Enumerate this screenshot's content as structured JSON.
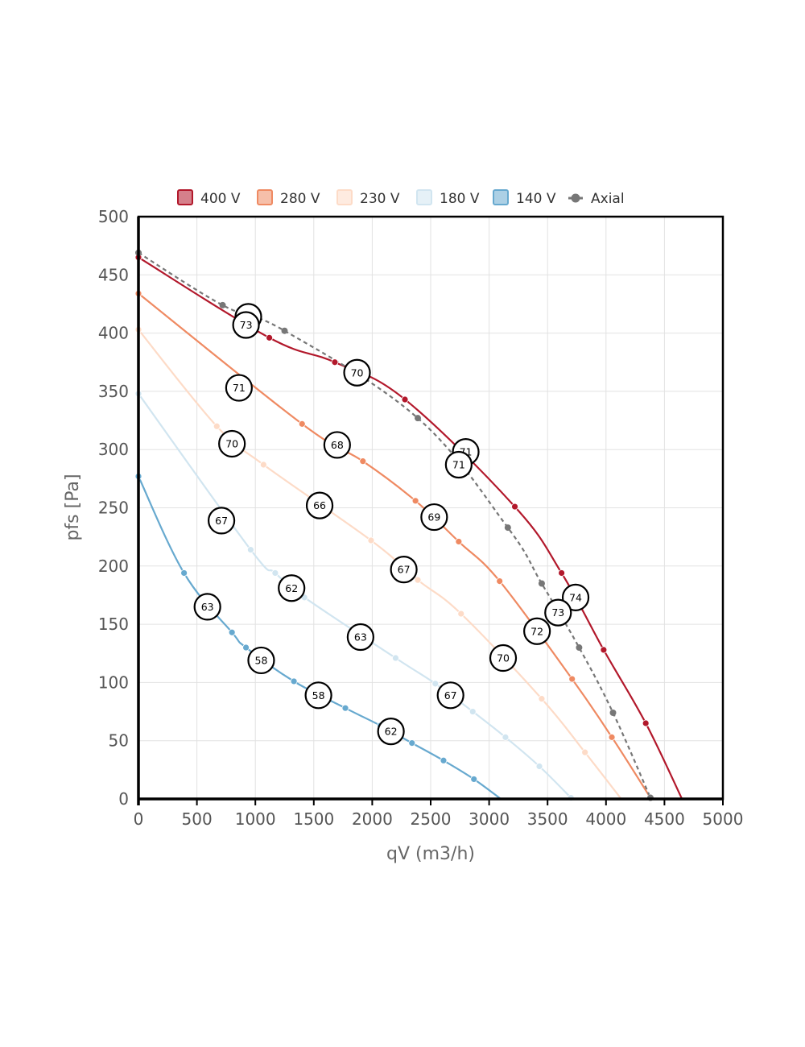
{
  "chart_data": {
    "type": "line",
    "xlabel": "qV (m3/h)",
    "ylabel": "pfs [Pa]",
    "xlim": [
      0,
      5000
    ],
    "ylim": [
      0,
      500
    ],
    "xticks": [
      "0",
      "500",
      "1000",
      "1500",
      "2000",
      "2500",
      "3000",
      "3500",
      "4000",
      "4500",
      "5000"
    ],
    "yticks": [
      "0",
      "50",
      "100",
      "150",
      "200",
      "250",
      "300",
      "350",
      "400",
      "450",
      "500"
    ],
    "grid": true,
    "legend_position": "top",
    "series": [
      {
        "name": "400 V",
        "color": "#b2182b",
        "dashed": false,
        "points": [
          [
            0,
            465
          ],
          [
            1120,
            396
          ],
          [
            1680,
            375
          ],
          [
            2280,
            343
          ],
          [
            3220,
            251
          ],
          [
            3620,
            194
          ],
          [
            3980,
            128
          ],
          [
            4340,
            65
          ],
          [
            4650,
            0
          ]
        ],
        "markers": [
          [
            0,
            465
          ],
          [
            1120,
            396
          ],
          [
            1680,
            375
          ],
          [
            2280,
            343
          ],
          [
            3220,
            251
          ],
          [
            3620,
            194
          ],
          [
            3980,
            128
          ],
          [
            4340,
            65
          ]
        ]
      },
      {
        "name": "280 V",
        "color": "#ef8a62",
        "dashed": false,
        "points": [
          [
            0,
            434
          ],
          [
            1400,
            322
          ],
          [
            1920,
            290
          ],
          [
            2370,
            256
          ],
          [
            2740,
            221
          ],
          [
            3090,
            187
          ],
          [
            3710,
            103
          ],
          [
            4050,
            53
          ],
          [
            4380,
            1
          ]
        ],
        "markers": [
          [
            0,
            434
          ],
          [
            1400,
            322
          ],
          [
            1920,
            290
          ],
          [
            2370,
            256
          ],
          [
            2740,
            221
          ],
          [
            3090,
            187
          ],
          [
            3710,
            103
          ],
          [
            4050,
            53
          ],
          [
            4380,
            1
          ]
        ]
      },
      {
        "name": "230 V",
        "color": "#fddbc7",
        "dashed": false,
        "points": [
          [
            0,
            403
          ],
          [
            670,
            320
          ],
          [
            1070,
            287
          ],
          [
            1990,
            222
          ],
          [
            2390,
            188
          ],
          [
            2760,
            159
          ],
          [
            3450,
            86
          ],
          [
            3820,
            40
          ],
          [
            4130,
            0
          ]
        ],
        "markers": [
          [
            0,
            403
          ],
          [
            670,
            320
          ],
          [
            1070,
            287
          ],
          [
            1990,
            222
          ],
          [
            2390,
            188
          ],
          [
            2760,
            159
          ],
          [
            3450,
            86
          ],
          [
            3820,
            40
          ]
        ]
      },
      {
        "name": "180 V",
        "color": "#d1e5f0",
        "dashed": false,
        "points": [
          [
            0,
            348
          ],
          [
            960,
            214
          ],
          [
            1170,
            194
          ],
          [
            1420,
            173
          ],
          [
            2200,
            121
          ],
          [
            2540,
            99
          ],
          [
            2860,
            75
          ],
          [
            3140,
            53
          ],
          [
            3430,
            28
          ],
          [
            3700,
            1
          ]
        ],
        "markers": [
          [
            0,
            348
          ],
          [
            960,
            214
          ],
          [
            1170,
            194
          ],
          [
            1420,
            173
          ],
          [
            2200,
            121
          ],
          [
            2540,
            99
          ],
          [
            2860,
            75
          ],
          [
            3140,
            53
          ],
          [
            3430,
            28
          ],
          [
            3700,
            1
          ]
        ]
      },
      {
        "name": "140 V",
        "color": "#67a9cf",
        "dashed": false,
        "points": [
          [
            0,
            277
          ],
          [
            390,
            194
          ],
          [
            800,
            143
          ],
          [
            920,
            130
          ],
          [
            1330,
            101
          ],
          [
            1770,
            78
          ],
          [
            2070,
            63
          ],
          [
            2340,
            48
          ],
          [
            2610,
            33
          ],
          [
            2870,
            17
          ],
          [
            3100,
            0
          ]
        ],
        "markers": [
          [
            0,
            277
          ],
          [
            390,
            194
          ],
          [
            800,
            143
          ],
          [
            920,
            130
          ],
          [
            1330,
            101
          ],
          [
            1770,
            78
          ],
          [
            2070,
            63
          ],
          [
            2340,
            48
          ],
          [
            2610,
            33
          ],
          [
            2870,
            17
          ]
        ]
      },
      {
        "name": "Axial",
        "color": "#777777",
        "dashed": true,
        "points": [
          [
            0,
            469
          ],
          [
            720,
            424
          ],
          [
            1250,
            402
          ],
          [
            2390,
            327
          ],
          [
            3160,
            233
          ],
          [
            3450,
            185
          ],
          [
            3770,
            130
          ],
          [
            4060,
            74
          ],
          [
            4380,
            1
          ]
        ],
        "markers": [
          [
            0,
            469
          ],
          [
            720,
            424
          ],
          [
            1250,
            402
          ],
          [
            2390,
            327
          ],
          [
            3160,
            233
          ],
          [
            3450,
            185
          ],
          [
            3770,
            130
          ],
          [
            4060,
            74
          ],
          [
            4380,
            1
          ]
        ]
      }
    ],
    "annotations": [
      {
        "x": 940,
        "y": 414,
        "label": "73"
      },
      {
        "x": 920,
        "y": 407,
        "label": "73"
      },
      {
        "x": 1870,
        "y": 366,
        "label": "70"
      },
      {
        "x": 860,
        "y": 353,
        "label": "71"
      },
      {
        "x": 800,
        "y": 305,
        "label": "70"
      },
      {
        "x": 1700,
        "y": 304,
        "label": "68"
      },
      {
        "x": 2800,
        "y": 298,
        "label": "71"
      },
      {
        "x": 2740,
        "y": 287,
        "label": "71"
      },
      {
        "x": 1550,
        "y": 252,
        "label": "66"
      },
      {
        "x": 2530,
        "y": 242,
        "label": "69"
      },
      {
        "x": 710,
        "y": 239,
        "label": "67"
      },
      {
        "x": 2270,
        "y": 197,
        "label": "67"
      },
      {
        "x": 1310,
        "y": 181,
        "label": "62"
      },
      {
        "x": 3740,
        "y": 173,
        "label": "74"
      },
      {
        "x": 590,
        "y": 165,
        "label": "63"
      },
      {
        "x": 3590,
        "y": 160,
        "label": "73"
      },
      {
        "x": 3410,
        "y": 144,
        "label": "72"
      },
      {
        "x": 1900,
        "y": 139,
        "label": "63"
      },
      {
        "x": 1050,
        "y": 119,
        "label": "58"
      },
      {
        "x": 3120,
        "y": 121,
        "label": "70"
      },
      {
        "x": 1540,
        "y": 89,
        "label": "58"
      },
      {
        "x": 2670,
        "y": 89,
        "label": "67"
      },
      {
        "x": 2160,
        "y": 58,
        "label": "62"
      }
    ]
  }
}
